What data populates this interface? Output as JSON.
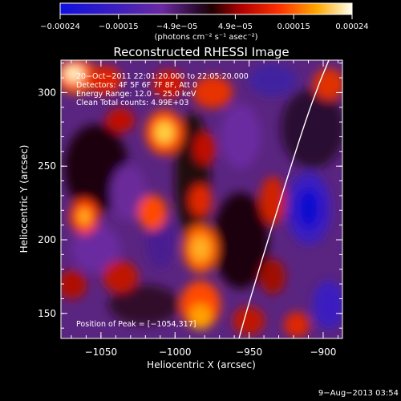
{
  "colorbar": {
    "ticks": [
      "−0.00024",
      "−0.00015",
      "−4.9e−05",
      "4.9e−05",
      "0.00015",
      "0.00024"
    ],
    "unit_label": "(photons cm⁻² s⁻¹ asec⁻²)"
  },
  "plot": {
    "title": "Reconstructed RHESSI Image",
    "xlabel": "Heliocentric X (arcsec)",
    "ylabel": "Heliocentric Y (arcsec)",
    "xticks": [
      "−1050",
      "−1000",
      "−950",
      "−900"
    ],
    "yticks": [
      "150",
      "200",
      "250",
      "300"
    ],
    "xlim": [
      -1077,
      -887
    ],
    "ylim": [
      133,
      322
    ]
  },
  "annotations": {
    "time_range": "20−Oct−2011 22:01:20.000 to 22:05:20.000",
    "detectors": "Detectors: 4F 5F 6F 7F 8F, Att 0",
    "energy": "Energy Range: 12.0 − 25.0 keV",
    "clean": "Clean     Total counts: 4.99E+03",
    "peak": "Position of Peak = [−1054,317]"
  },
  "footer": {
    "date": "9−Aug−2013 03:54"
  },
  "colors": {
    "background": "#000000",
    "axes": "#ffffff"
  }
}
